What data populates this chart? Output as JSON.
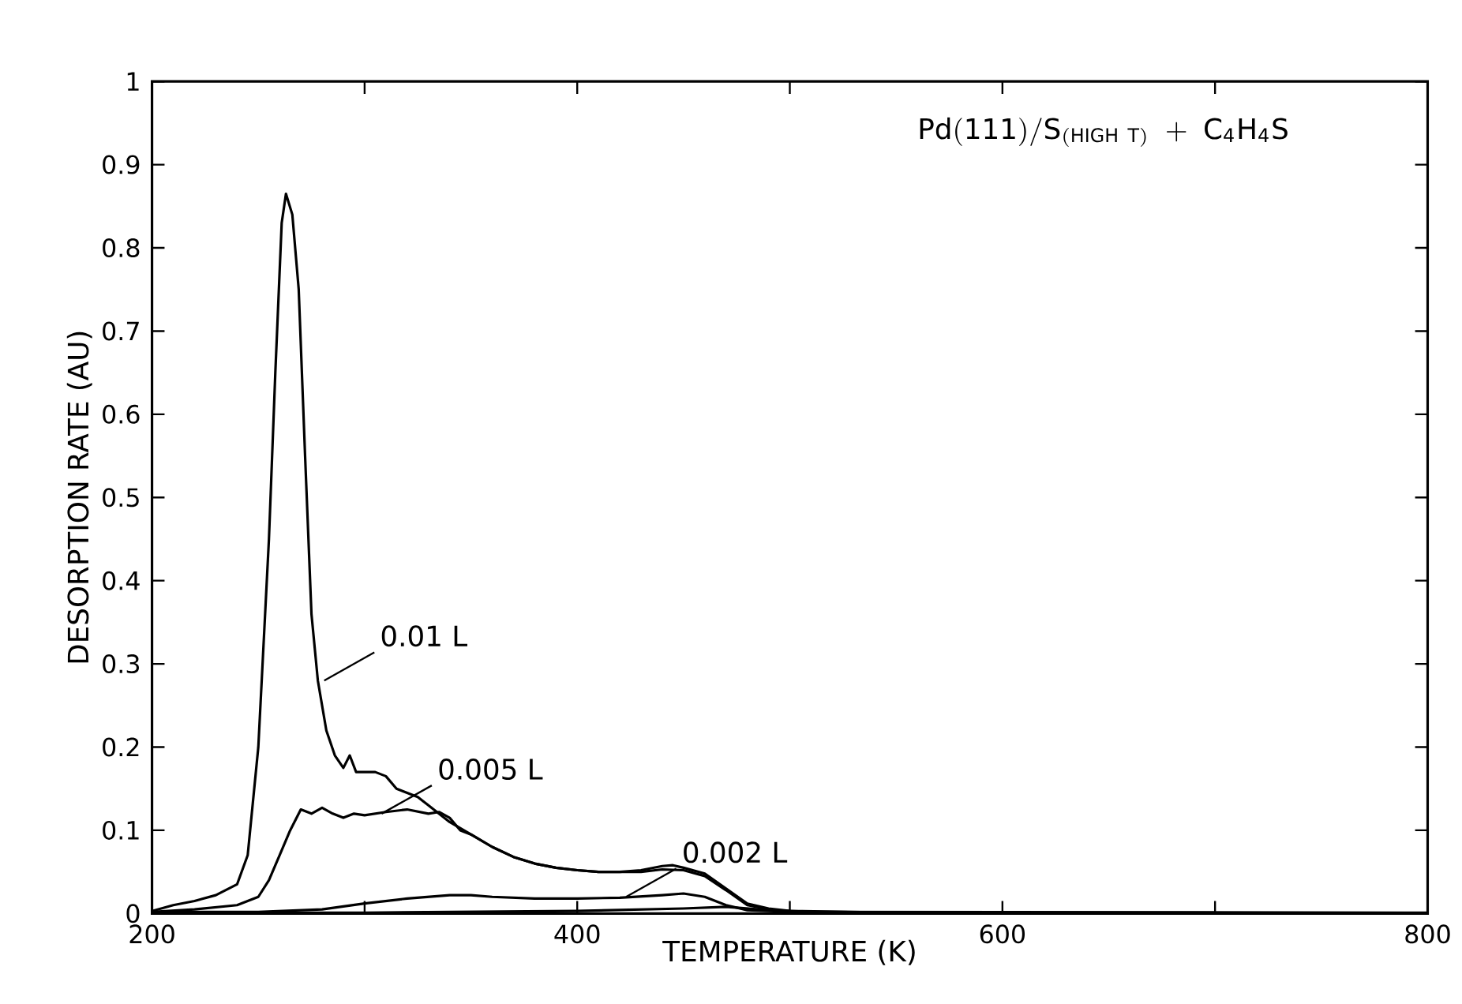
{
  "chart_data": {
    "type": "line",
    "title": "\\mathrm{Pd(111)/S_{(HIGH\\ T)}\\ +\\ C_{4}H_{4}S}",
    "xlabel": "TEMPERATURE (K)",
    "ylabel": "DESORPTION RATE (AU)",
    "xlim": [
      200,
      800
    ],
    "ylim": [
      0,
      1
    ],
    "xticks": [
      200,
      {
        "value": 300,
        "label": null
      },
      400,
      {
        "value": 500,
        "label": null
      },
      600,
      {
        "value": 700,
        "label": null
      },
      800
    ],
    "yticks": [
      0,
      0.1,
      0.2,
      0.3,
      0.4,
      0.5,
      0.6,
      0.7,
      0.8,
      0.9,
      1
    ],
    "grid": false,
    "marker": "none",
    "line_style": "solid",
    "series": [
      {
        "color": "#000000",
        "x": [
          200,
          210,
          220,
          230,
          240,
          245,
          250,
          255,
          258,
          261,
          263,
          266,
          269,
          272,
          275,
          278,
          282,
          286,
          290,
          293,
          296,
          300,
          305,
          310,
          315,
          320,
          325,
          330,
          340,
          350,
          360,
          370,
          380,
          390,
          400,
          410,
          420,
          430,
          440,
          445,
          450,
          460,
          470,
          480,
          490,
          500,
          550,
          600,
          800
        ],
        "values": [
          0.003,
          0.01,
          0.015,
          0.022,
          0.035,
          0.07,
          0.2,
          0.45,
          0.65,
          0.83,
          0.865,
          0.84,
          0.75,
          0.55,
          0.36,
          0.28,
          0.22,
          0.19,
          0.175,
          0.19,
          0.17,
          0.17,
          0.17,
          0.165,
          0.15,
          0.145,
          0.14,
          0.13,
          0.11,
          0.095,
          0.08,
          0.068,
          0.06,
          0.055,
          0.052,
          0.05,
          0.05,
          0.052,
          0.057,
          0.058,
          0.055,
          0.048,
          0.03,
          0.012,
          0.006,
          0.003,
          0.001,
          0.001,
          0
        ]
      },
      {
        "color": "#000000",
        "x": [
          200,
          220,
          240,
          250,
          255,
          260,
          265,
          270,
          275,
          280,
          285,
          290,
          295,
          300,
          310,
          320,
          330,
          335,
          340,
          345,
          350,
          360,
          370,
          380,
          390,
          400,
          410,
          420,
          430,
          440,
          450,
          460,
          470,
          480,
          490,
          500,
          600,
          700
        ],
        "values": [
          0.002,
          0.005,
          0.01,
          0.02,
          0.04,
          0.07,
          0.1,
          0.125,
          0.12,
          0.127,
          0.12,
          0.115,
          0.12,
          0.118,
          0.122,
          0.125,
          0.12,
          0.122,
          0.115,
          0.1,
          0.095,
          0.08,
          0.068,
          0.06,
          0.055,
          0.052,
          0.05,
          0.05,
          0.05,
          0.053,
          0.052,
          0.045,
          0.028,
          0.01,
          0.005,
          0.002,
          0.001,
          0.001
        ]
      },
      {
        "color": "#000000",
        "x": [
          200,
          250,
          280,
          300,
          320,
          340,
          350,
          360,
          380,
          400,
          420,
          440,
          450,
          460,
          470,
          480,
          500,
          800
        ],
        "values": [
          0.002,
          0.002,
          0.005,
          0.012,
          0.018,
          0.022,
          0.022,
          0.02,
          0.018,
          0.018,
          0.019,
          0.022,
          0.024,
          0.02,
          0.01,
          0.004,
          0.002,
          0.001
        ]
      },
      {
        "color": "#000000",
        "x": [
          220,
          300,
          400,
          450,
          470,
          490,
          520
        ],
        "values": [
          0.001,
          0.001,
          0.003,
          0.006,
          0.008,
          0.004,
          0.001
        ]
      }
    ],
    "annotations": [
      {
        "text": "0.01 L",
        "x": 281,
        "y": 0.28
      },
      {
        "text": "0.005 L",
        "x": 308,
        "y": 0.12
      },
      {
        "text": "0.002 L",
        "x": 423,
        "y": 0.02
      }
    ]
  }
}
